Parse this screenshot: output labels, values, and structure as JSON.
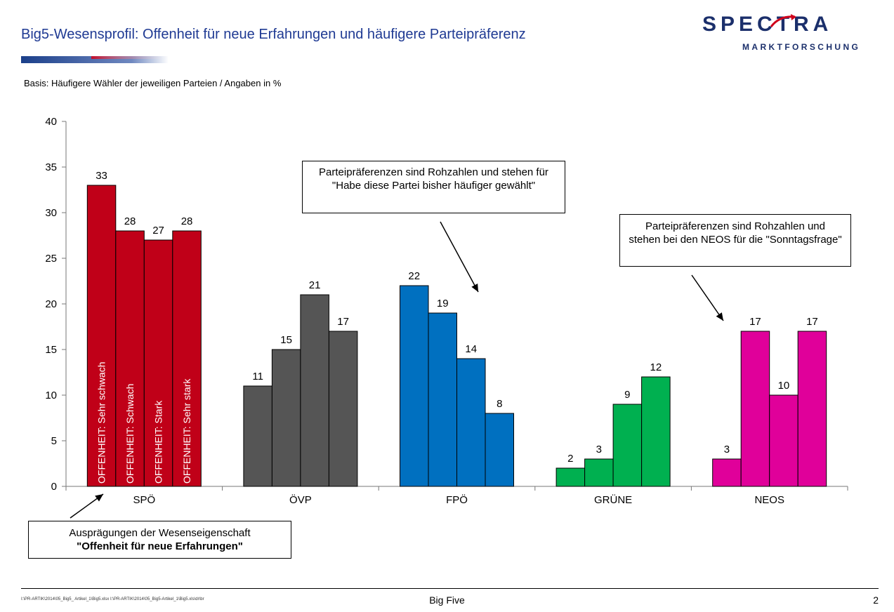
{
  "header": {
    "title": "Big5-Wesensprofil: Offenheit für neue Erfahrungen und häufigere Parteipräferenz",
    "basis": "Basis: Häufigere Wähler der jeweiligen Parteien / Angaben in %"
  },
  "logo": {
    "main_text": "SPECTRA",
    "sub_text": "MARKTFORSCHUNG",
    "color": "#1b2f6b",
    "accent": "#d0021b"
  },
  "callouts": {
    "top": "Parteipräferenzen sind Rohzahlen und stehen für \"Habe diese Partei bisher häufiger gewählt\"",
    "right": "Parteipräferenzen sind Rohzahlen und stehen bei den NEOS für die \"Sonntagsfrage\"",
    "bottom_line1": "Ausprägungen der Wesenseigenschaft",
    "bottom_line2": "\"Offenheit für neue Erfahrungen\""
  },
  "footer": {
    "path": "I:\\PR-ARTIK\\2014\\05_Big5_ Artikel_1\\Big5.xlsx I:\\PR-ARTIK\\2014\\05_Big5-Artikel_1\\Big5.xls\\dr\\br",
    "center": "Big Five",
    "page": "2"
  },
  "chart_data": {
    "type": "bar",
    "categories": [
      "SPÖ",
      "ÖVP",
      "FPÖ",
      "GRÜNE",
      "NEOS"
    ],
    "series": [
      {
        "name": "OFFENHEIT: Sehr schwach",
        "values": [
          33,
          11,
          22,
          2,
          3
        ]
      },
      {
        "name": "OFFENHEIT: Schwach",
        "values": [
          28,
          15,
          19,
          3,
          17
        ]
      },
      {
        "name": "OFFENHEIT: Stark",
        "values": [
          27,
          21,
          14,
          9,
          10
        ]
      },
      {
        "name": "OFFENHEIT: Sehr stark",
        "values": [
          28,
          17,
          8,
          12,
          17
        ]
      }
    ],
    "category_colors": [
      "#c00018",
      "#555555",
      "#0070c0",
      "#00b050",
      "#e0009a"
    ],
    "ylim": [
      0,
      40
    ],
    "yticks": [
      0,
      5,
      10,
      15,
      20,
      25,
      30,
      35,
      40
    ],
    "series_labels_shown_in": "SPÖ bars",
    "grid": false,
    "legend": "none"
  }
}
